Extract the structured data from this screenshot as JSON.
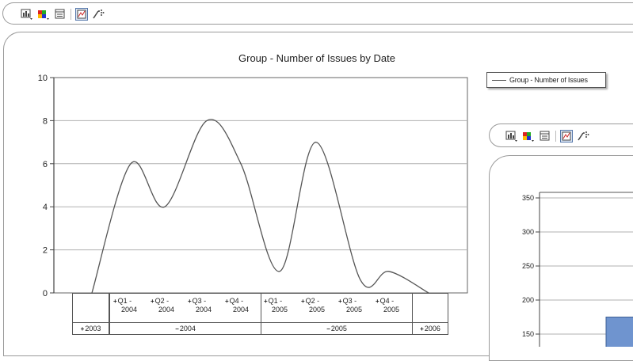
{
  "toolbar": {
    "icons": [
      "chart-type-icon",
      "color-palette-icon",
      "data-grid-icon",
      "chart-wizard-icon",
      "drilldown-icon"
    ]
  },
  "chart_data": [
    {
      "type": "line",
      "title": "Group - Number of Issues by Date",
      "xlabel": "",
      "ylabel": "",
      "ylim": [
        0,
        10
      ],
      "y_ticks": [
        "0",
        "2",
        "4",
        "6",
        "8",
        "10"
      ],
      "categories": [
        "2003",
        "Q1 - 2004",
        "Q2 - 2004",
        "Q3 - 2004",
        "Q4 - 2004",
        "Q1 - 2005",
        "Q2 - 2005",
        "Q3 - 2005",
        "Q4 - 2005",
        "2006"
      ],
      "series": [
        {
          "name": "Group - Number of Issues",
          "values": [
            0,
            6,
            4,
            8,
            6,
            1,
            7,
            0.6,
            1,
            0
          ],
          "color": "#555555"
        }
      ],
      "grid": true,
      "legend_position": "right"
    },
    {
      "type": "bar",
      "y_ticks": [
        "150",
        "200",
        "250",
        "300",
        "350"
      ],
      "ylim": [
        150,
        350
      ],
      "series": [
        {
          "values": [
            175
          ],
          "color": "#6f94cf"
        }
      ]
    }
  ],
  "x_axis_grid": {
    "quarters": [
      {
        "label_line1": "Q1 -",
        "label_line2": "2004"
      },
      {
        "label_line1": "Q2 -",
        "label_line2": "2004"
      },
      {
        "label_line1": "Q3 -",
        "label_line2": "2004"
      },
      {
        "label_line1": "Q4 -",
        "label_line2": "2004"
      },
      {
        "label_line1": "Q1 -",
        "label_line2": "2005"
      },
      {
        "label_line1": "Q2 -",
        "label_line2": "2005"
      },
      {
        "label_line1": "Q3 -",
        "label_line2": "2005"
      },
      {
        "label_line1": "Q4 -",
        "label_line2": "2005"
      }
    ],
    "years": [
      {
        "label": "2003",
        "expander": "+"
      },
      {
        "label": "2004",
        "expander": "−"
      },
      {
        "label": "2005",
        "expander": "−"
      },
      {
        "label": "2006",
        "expander": "+"
      }
    ]
  },
  "legend": {
    "label": "Group - Number of Issues"
  }
}
